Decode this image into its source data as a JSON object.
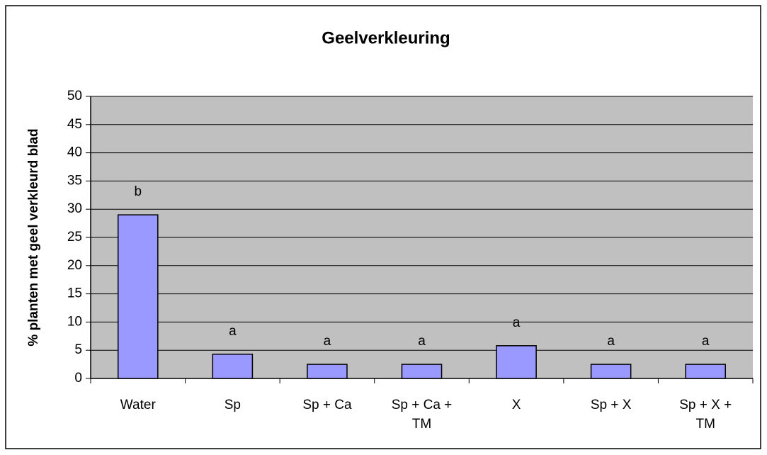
{
  "chart_data": {
    "type": "bar",
    "title": "Geelverkleuring",
    "y_label": "% planten met geel verkleurd blad",
    "categories": [
      "Water",
      "Sp",
      "Sp + Ca",
      "Sp + Ca + TM",
      "X",
      "Sp + X",
      "Sp + X + TM"
    ],
    "values": [
      29,
      4.3,
      2.5,
      2.5,
      5.8,
      2.5,
      2.5
    ],
    "annotations": [
      "b",
      "a",
      "a",
      "a",
      "a",
      "a",
      "a"
    ],
    "color": "#9999ff",
    "ylim": [
      0,
      50
    ],
    "yticks": [
      0,
      5,
      10,
      15,
      20,
      25,
      30,
      35,
      40,
      45,
      50
    ],
    "grid": true
  }
}
